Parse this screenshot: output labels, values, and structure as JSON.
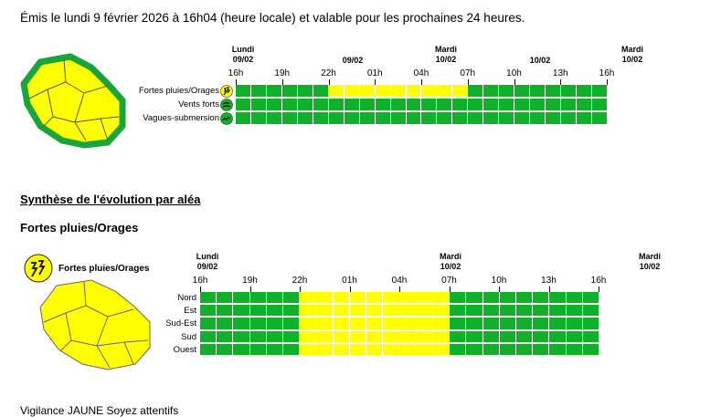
{
  "intro": "Émis le lundi 9 février 2026 à 16h04 (heure locale) et valable pour les prochaines 24 heures.",
  "colors": {
    "green": "#11b02a",
    "yellow": "#ffff00",
    "border_green": "#19a53a"
  },
  "top_chart": {
    "date_headers": [
      {
        "text": "Lundi\n09/02"
      },
      {
        "text": "09/02"
      },
      {
        "text": "Mardi\n10/02"
      },
      {
        "text": "10/02"
      },
      {
        "text": "Mardi\n10/02"
      }
    ],
    "ticks": [
      "16h",
      "19h",
      "22h",
      "01h",
      "04h",
      "07h",
      "10h",
      "13h",
      "16h"
    ],
    "rows": [
      {
        "label": "Fortes pluies/Orages",
        "icon": "thunderstorm-icon",
        "cells": "GGGGGGYYYYYYYYYGGGGGGGGG"
      },
      {
        "label": "Vents forts",
        "icon": "wind-icon",
        "cells": "GGGGGGGGGGGGGGGGGGGGGGGG"
      },
      {
        "label": "Vagues-submersion",
        "icon": "wave-icon",
        "cells": "GGGGGGGGGGGGGGGGGGGGGGGG"
      }
    ]
  },
  "synthese_title": "Synthèse de l'évolution par aléa",
  "hazard_title": "Fortes pluies/Orages",
  "hazard_chart": {
    "legend_label": "Fortes pluies/Orages",
    "date_headers": [
      {
        "text": "Lundi\n09/02"
      },
      {
        "text": "Mardi\n10/02"
      },
      {
        "text": "Mardi\n10/02"
      }
    ],
    "ticks": [
      "16h",
      "19h",
      "22h",
      "01h",
      "04h",
      "07h",
      "10h",
      "13h",
      "16h"
    ],
    "rows": [
      {
        "label": "Nord",
        "cells": "GGGGGGYYYYYYYYYGGGGGGGGG"
      },
      {
        "label": "Est",
        "cells": "GGGGGGYYYYYYYYYGGGGGGGGG"
      },
      {
        "label": "Sud-Est",
        "cells": "GGGGGGYYYYYYYYYGGGGGGGGG"
      },
      {
        "label": "Sud",
        "cells": "GGGGGGYYYYYYYYYGGGGGGGGG"
      },
      {
        "label": "Ouest",
        "cells": "GGGGGGYYYYYYYYYGGGGGGGGG"
      }
    ]
  },
  "bottom_text": "Vigilance JAUNE             Soyez attentifs"
}
